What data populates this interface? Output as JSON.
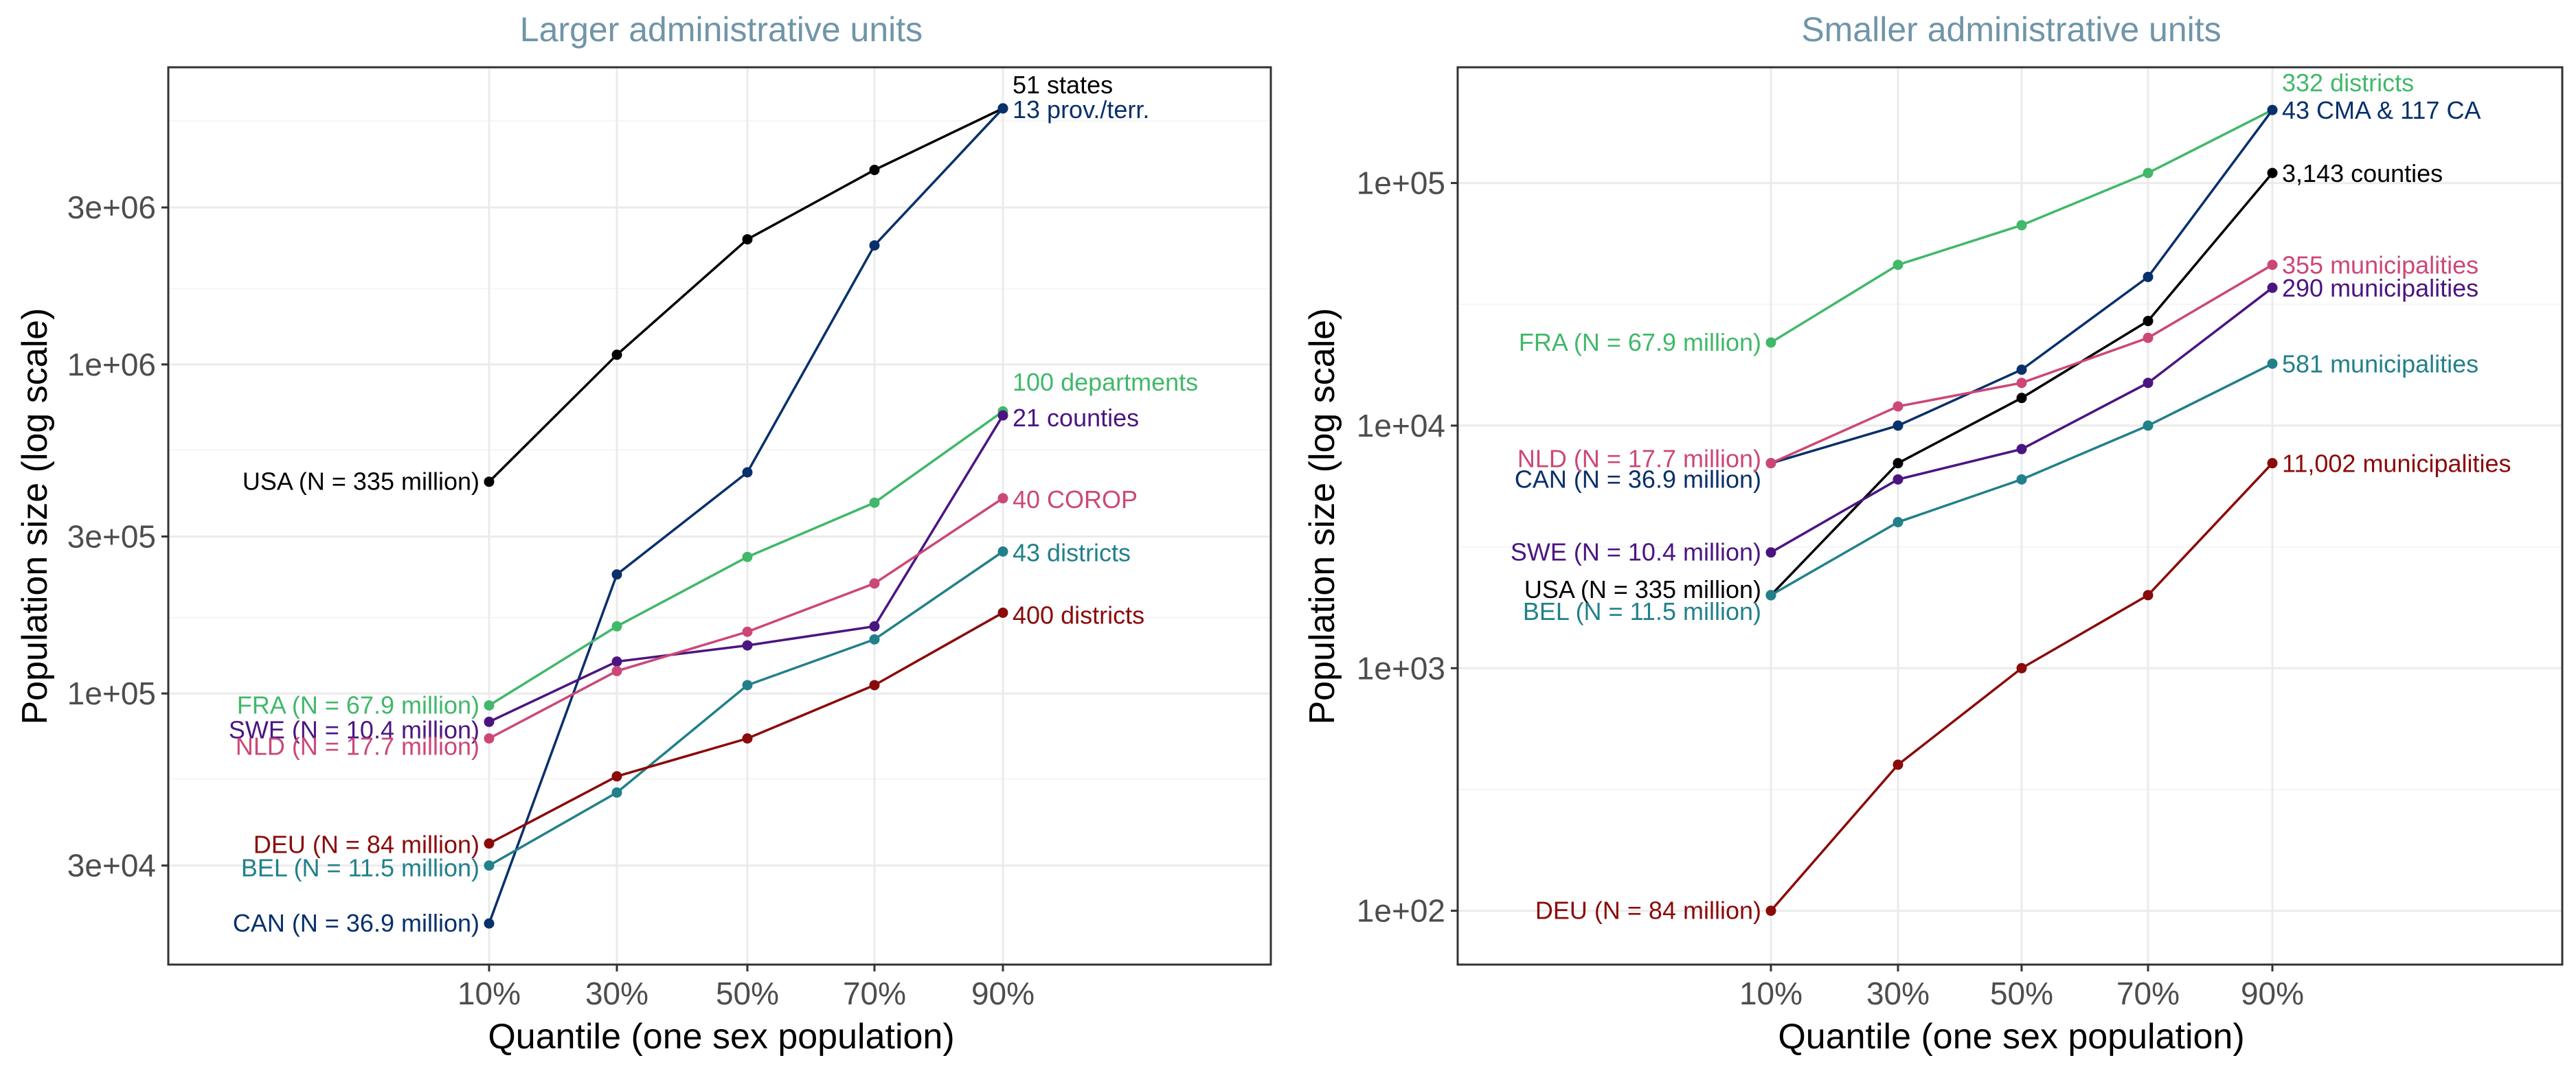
{
  "chart_data": [
    {
      "type": "line",
      "title": "Larger administrative units",
      "xlabel": "Quantile (one sex population)",
      "ylabel": "Population size (log scale)",
      "y_scale": "log",
      "ylim": [
        15000,
        8000000
      ],
      "yticks": [
        {
          "value": 30000,
          "label": "3e+04"
        },
        {
          "value": 100000,
          "label": "1e+05"
        },
        {
          "value": 300000,
          "label": "3e+05"
        },
        {
          "value": 1000000,
          "label": "1e+06"
        },
        {
          "value": 3000000,
          "label": "3e+06"
        }
      ],
      "categories": [
        "10%",
        "30%",
        "50%",
        "70%",
        "90%"
      ],
      "grid": true,
      "legend": "none",
      "series": [
        {
          "start_label": "USA (N = 335 million)",
          "end_label": "51 states",
          "color": "#000000",
          "values": [
            440000,
            1070000,
            2400000,
            3900000,
            6000000
          ]
        },
        {
          "start_label": "CAN (N = 36.9 million)",
          "end_label": "13 prov./terr.",
          "color": "#08306b",
          "values": [
            20000,
            230000,
            470000,
            2300000,
            6000000
          ]
        },
        {
          "start_label": "FRA (N = 67.9 million)",
          "end_label": "100 departments",
          "color": "#41b86a",
          "values": [
            92000,
            160000,
            260000,
            380000,
            720000
          ]
        },
        {
          "start_label": "SWE (N = 10.4 million)",
          "end_label": "21 counties",
          "color": "#4b1581",
          "values": [
            82000,
            125000,
            140000,
            160000,
            700000
          ]
        },
        {
          "start_label": "NLD (N = 17.7 million)",
          "end_label": "40 COROP",
          "color": "#cc4778",
          "values": [
            73000,
            117000,
            154000,
            216000,
            392000
          ]
        },
        {
          "start_label": "BEL (N = 11.5 million)",
          "end_label": "43 districts",
          "color": "#21808a",
          "values": [
            30000,
            50000,
            106000,
            146000,
            270000
          ]
        },
        {
          "start_label": "DEU (N = 84 million)",
          "end_label": "400 districts",
          "color": "#8b0a0a",
          "values": [
            35000,
            56000,
            73000,
            106000,
            176000
          ]
        }
      ]
    },
    {
      "type": "line",
      "title": "Smaller administrative units",
      "xlabel": "Quantile (one sex population)",
      "ylabel": "Population size (log scale)",
      "y_scale": "log",
      "ylim": [
        60,
        300000
      ],
      "yticks": [
        {
          "value": 100,
          "label": "1e+02"
        },
        {
          "value": 1000,
          "label": "1e+03"
        },
        {
          "value": 10000,
          "label": "1e+04"
        },
        {
          "value": 100000,
          "label": "1e+05"
        }
      ],
      "categories": [
        "10%",
        "30%",
        "50%",
        "70%",
        "90%"
      ],
      "grid": true,
      "legend": "none",
      "series": [
        {
          "start_label": "FRA (N = 67.9 million)",
          "end_label": "332 districts",
          "color": "#41b86a",
          "values": [
            22000,
            46000,
            67000,
            110000,
            200000
          ]
        },
        {
          "start_label": "CAN (N = 36.9 million)",
          "end_label": "43 CMA & 117 CA",
          "color": "#08306b",
          "values": [
            7000,
            10000,
            17000,
            41000,
            200000
          ]
        },
        {
          "start_label": "USA (N = 335 million)",
          "end_label": "3,143 counties",
          "color": "#000000",
          "values": [
            2000,
            7000,
            13000,
            27000,
            110000
          ]
        },
        {
          "start_label": "NLD (N = 17.7 million)",
          "end_label": "355 municipalities",
          "color": "#cc4778",
          "values": [
            7000,
            12000,
            15000,
            23000,
            46000
          ]
        },
        {
          "start_label": "SWE (N = 10.4 million)",
          "end_label": "290 municipalities",
          "color": "#4b1581",
          "values": [
            3000,
            6000,
            8000,
            15000,
            37000
          ]
        },
        {
          "start_label": "BEL (N = 11.5 million)",
          "end_label": "581 municipalities",
          "color": "#21808a",
          "values": [
            2000,
            4000,
            6000,
            10000,
            18000
          ]
        },
        {
          "start_label": "DEU (N = 84 million)",
          "end_label": "11,002 municipalities",
          "color": "#8b0a0a",
          "values": [
            100,
            400,
            1000,
            2000,
            7000
          ]
        }
      ]
    }
  ],
  "style": {
    "title_color": "#6f95a8",
    "panel_border": "#333333",
    "grid_major": "#ebebeb",
    "grid_minor": "#f5f5f5"
  }
}
